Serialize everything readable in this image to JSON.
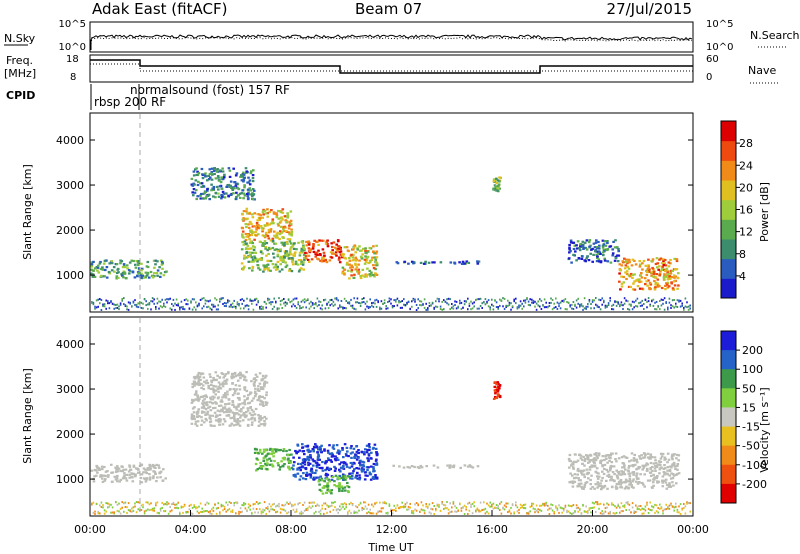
{
  "header": {
    "title": "Adak East (fitACF)",
    "beam": "Beam 07",
    "date": "27/Jul/2015"
  },
  "top_panels": {
    "nsky_label": "N.Sky",
    "nsearch_label": "N.Search",
    "freq_label_line1": "Freq.",
    "freq_label_line2": "[MHz]",
    "nave_label": "Nave",
    "cpid_label": "CPID",
    "nsky_ticks": [
      "10^5",
      "10^0"
    ],
    "nsearch_ticks": [
      "10^5",
      "10^0"
    ],
    "freq_ticks": [
      "18",
      "8"
    ],
    "nave_ticks": [
      "60",
      "0"
    ],
    "cpid_labels": [
      {
        "text": "rbsp 200 RF",
        "start_hour": 0.1
      },
      {
        "text": "normalsound (fost) 157 RF",
        "start_hour": 2.0
      }
    ]
  },
  "colors": {
    "power": [
      "#1b1bcc",
      "#2a5cbf",
      "#3c8c6e",
      "#5aaa4e",
      "#9fcc3a",
      "#e0c020",
      "#f08a18",
      "#ee4a10",
      "#dd0000"
    ],
    "velocity": [
      "#1d1dd9",
      "#2563c8",
      "#3c9a4a",
      "#7fcf3f",
      "#c8c8c0",
      "#e8c020",
      "#f08a18",
      "#ee5010",
      "#e00000"
    ],
    "ground_scatter": "#bdbdb7"
  },
  "chart_data": [
    {
      "type": "heatmap",
      "panel": "power",
      "ylabel": "Slant Range [km]",
      "xlim_hours": [
        0,
        24
      ],
      "ylim_km": [
        180,
        4600
      ],
      "yticks": [
        "1000",
        "2000",
        "3000",
        "4000"
      ],
      "colorbar_label": "Power [dB]",
      "colorbar_ticks": [
        "4",
        "8",
        "12",
        "16",
        "20",
        "24",
        "28"
      ],
      "colorbar_range": [
        0,
        32
      ],
      "regions": [
        {
          "x": [
            0.0,
            3.0
          ],
          "y": [
            950,
            1350
          ],
          "level": 0.35
        },
        {
          "x": [
            4.0,
            6.5
          ],
          "y": [
            2700,
            3400
          ],
          "level": 0.25
        },
        {
          "x": [
            6.0,
            8.0
          ],
          "y": [
            1800,
            2500
          ],
          "level": 0.65
        },
        {
          "x": [
            6.0,
            8.5
          ],
          "y": [
            1100,
            1800
          ],
          "level": 0.45
        },
        {
          "x": [
            8.5,
            10.0
          ],
          "y": [
            1300,
            1800
          ],
          "level": 0.85
        },
        {
          "x": [
            10.0,
            11.4
          ],
          "y": [
            950,
            1700
          ],
          "level": 0.6
        },
        {
          "x": [
            12.0,
            15.5
          ],
          "y": [
            1270,
            1330
          ],
          "level": 0.15
        },
        {
          "x": [
            16.0,
            16.3
          ],
          "y": [
            2800,
            3200
          ],
          "level": 0.4
        },
        {
          "x": [
            19.0,
            21.0
          ],
          "y": [
            1300,
            1800
          ],
          "level": 0.2
        },
        {
          "x": [
            21.0,
            23.4
          ],
          "y": [
            700,
            1400
          ],
          "level": 0.7
        }
      ]
    },
    {
      "type": "heatmap",
      "panel": "velocity",
      "xlabel": "Time UT",
      "ylabel": "Slant Range [km]",
      "xlim_hours": [
        0,
        24
      ],
      "ylim_km": [
        180,
        4600
      ],
      "xticks": [
        "00:00",
        "04:00",
        "08:00",
        "12:00",
        "16:00",
        "20:00",
        "00:00"
      ],
      "yticks": [
        "1000",
        "2000",
        "3000",
        "4000"
      ],
      "colorbar_label": "Velocity [m s⁻¹]",
      "colorbar_ticks": [
        "200",
        "100",
        "50",
        "15",
        "-15",
        "-50",
        "-100",
        "-200"
      ],
      "regions": [
        {
          "x": [
            0.0,
            3.0
          ],
          "y": [
            950,
            1350
          ],
          "kind": "gs"
        },
        {
          "x": [
            4.0,
            7.0
          ],
          "y": [
            2200,
            3400
          ],
          "kind": "gs"
        },
        {
          "x": [
            6.5,
            8.0
          ],
          "y": [
            1200,
            1700
          ],
          "kind": "green"
        },
        {
          "x": [
            8.0,
            11.4
          ],
          "y": [
            1000,
            1800
          ],
          "kind": "blue"
        },
        {
          "x": [
            9.0,
            10.3
          ],
          "y": [
            700,
            1100
          ],
          "kind": "green"
        },
        {
          "x": [
            12.0,
            15.5
          ],
          "y": [
            1270,
            1330
          ],
          "kind": "gs"
        },
        {
          "x": [
            16.0,
            16.3
          ],
          "y": [
            2800,
            3200
          ],
          "kind": "red"
        },
        {
          "x": [
            19.0,
            23.4
          ],
          "y": [
            800,
            1600
          ],
          "kind": "gs"
        }
      ]
    }
  ]
}
